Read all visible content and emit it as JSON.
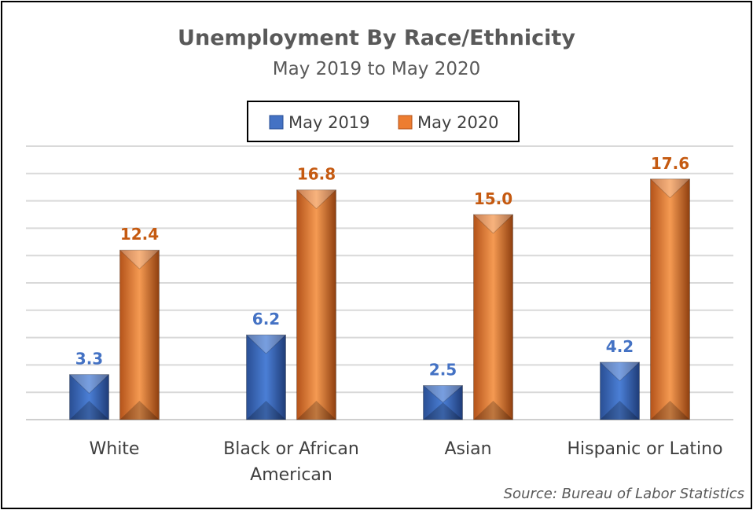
{
  "chart_data": {
    "type": "bar",
    "title": "Unemployment By Race/Ethnicity",
    "subtitle": "May 2019 to May 2020",
    "categories": [
      "White",
      "Black or African American",
      "Asian",
      "Hispanic or Latino"
    ],
    "category_lines": [
      [
        "White"
      ],
      [
        "Black or African",
        "American"
      ],
      [
        "Asian"
      ],
      [
        "Hispanic or Latino"
      ]
    ],
    "series": [
      {
        "name": "May 2019",
        "values": [
          3.3,
          6.2,
          2.5,
          4.2
        ],
        "labels": [
          "3.3",
          "6.2",
          "2.5",
          "4.2"
        ],
        "color": "#4472C4"
      },
      {
        "name": "May 2020",
        "values": [
          12.4,
          16.8,
          15.0,
          17.6
        ],
        "labels": [
          "12.4",
          "16.8",
          "15.0",
          "17.6"
        ],
        "color": "#ED7D31"
      }
    ],
    "ylim": [
      0,
      20
    ],
    "grid": true,
    "legend": "top-center",
    "xlabel": "",
    "ylabel": "",
    "source": "Source: Bureau of Labor Statistics"
  },
  "colors": {
    "blue_label": "#4472C4",
    "orange_label": "#C55A11"
  }
}
